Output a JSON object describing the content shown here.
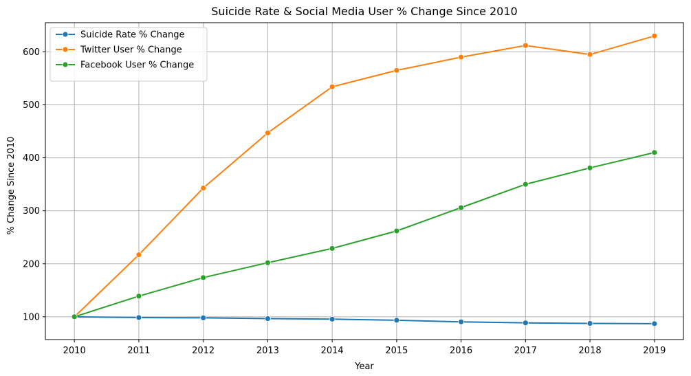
{
  "chart_data": {
    "type": "line",
    "title": "Suicide Rate & Social Media User % Change Since 2010",
    "xlabel": "Year",
    "ylabel": "% Change Since 2010",
    "x": [
      "2010",
      "2011",
      "2012",
      "2013",
      "2014",
      "2015",
      "2016",
      "2017",
      "2018",
      "2019"
    ],
    "ylim": [
      57,
      655
    ],
    "yticks": [
      100,
      200,
      300,
      400,
      500,
      600
    ],
    "grid": true,
    "legend_position": "upper-left",
    "series": [
      {
        "name": "Suicide Rate % Change",
        "color": "#1f77b4",
        "values": [
          100,
          98.5,
          98,
          96.5,
          95.5,
          93.5,
          90.5,
          88.5,
          87.5,
          87
        ]
      },
      {
        "name": "Twitter User % Change",
        "color": "#ff7f0e",
        "values": [
          100,
          217,
          343,
          447,
          534,
          565,
          590,
          612,
          595,
          630
        ]
      },
      {
        "name": "Facebook User % Change",
        "color": "#2ca02c",
        "values": [
          100,
          139,
          174,
          202,
          229,
          262,
          306,
          350,
          381,
          410
        ]
      }
    ]
  }
}
